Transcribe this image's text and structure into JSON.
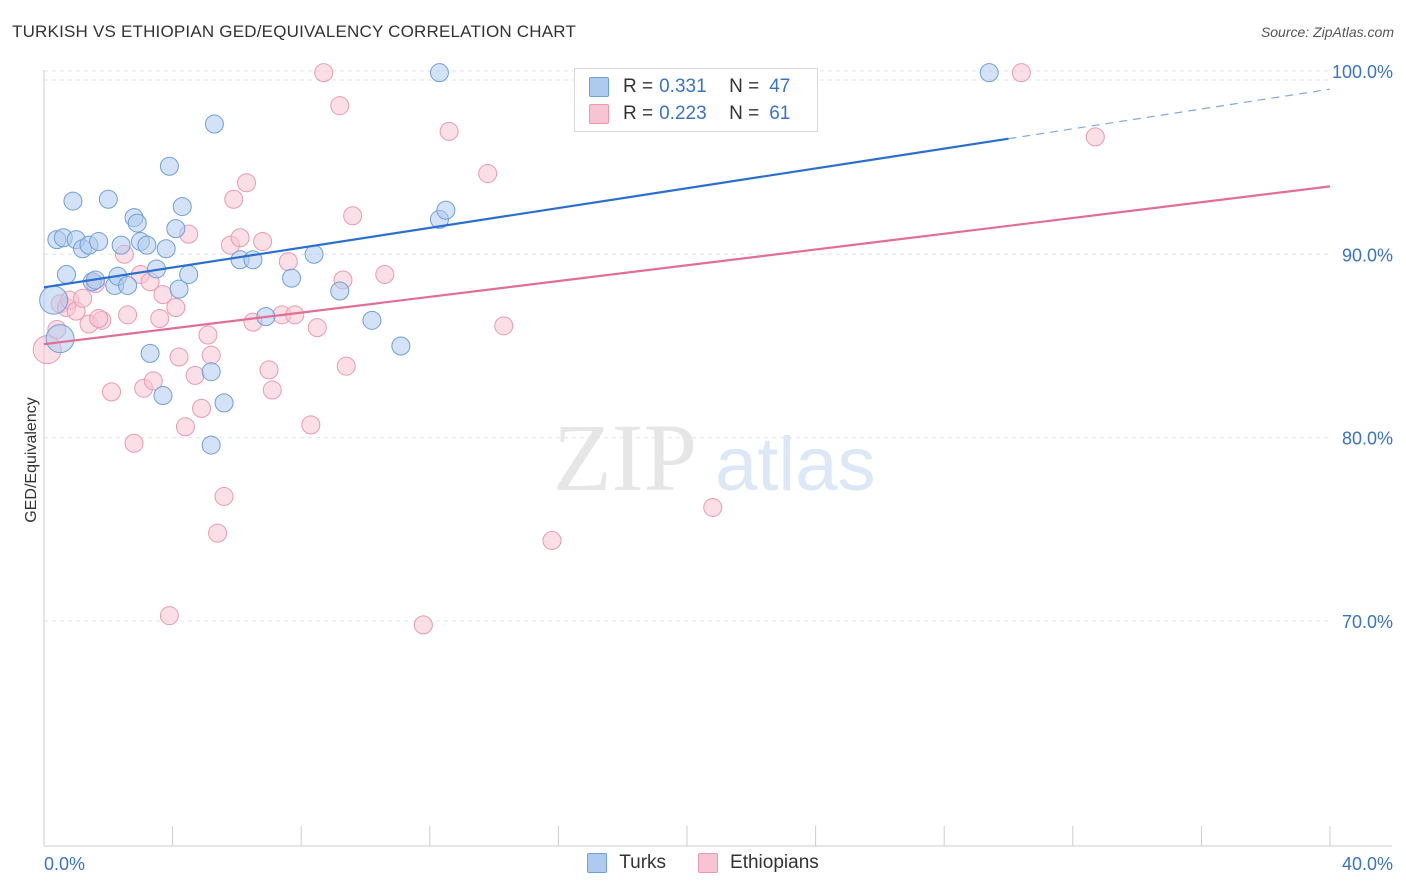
{
  "header": {
    "title": "TURKISH VS ETHIOPIAN GED/EQUIVALENCY CORRELATION CHART",
    "source": "Source: ZipAtlas.com"
  },
  "watermark": {
    "zip": "ZIP",
    "atlas": "atlas"
  },
  "legend": {
    "rows": [
      {
        "r_label": "R =",
        "r_value": "0.331",
        "n_label": "N =",
        "n_value": "47"
      },
      {
        "r_label": "R =",
        "r_value": "0.223",
        "n_label": "N =",
        "n_value": "61"
      }
    ]
  },
  "bottom_legend": {
    "series1": "Turks",
    "series2": "Ethiopians"
  },
  "colors": {
    "turks_fill": "#aecbef",
    "turks_stroke": "#6f9fd8",
    "turks_line": "#2a6fcd",
    "eth_fill": "#f7c4d3",
    "eth_stroke": "#e99ab2",
    "eth_line": "#e06f96",
    "tick_text": "#3a73c5",
    "grid": "#e3e3e3"
  },
  "chart_data": {
    "type": "scatter",
    "title": "TURKISH VS ETHIOPIAN GED/EQUIVALENCY CORRELATION CHART",
    "xlabel": "",
    "ylabel": "GED/Equivalency",
    "xlim": [
      0,
      40
    ],
    "ylim": [
      60,
      100
    ],
    "x_ticks": [
      "0.0%",
      "40.0%"
    ],
    "y_ticks": [
      {
        "value": 70,
        "label": "70.0%"
      },
      {
        "value": 80,
        "label": "80.0%"
      },
      {
        "value": 90,
        "label": "90.0%"
      },
      {
        "value": 100,
        "label": "100.0%"
      }
    ],
    "grid": true,
    "legend_position": "top-center",
    "series": [
      {
        "name": "Turks",
        "r": 0.331,
        "n": 47,
        "trend": {
          "x": [
            0,
            30,
            40
          ],
          "y": [
            88.2,
            96.3,
            99.0
          ],
          "solid_until": 30
        },
        "points": [
          [
            0.3,
            87.5,
            14
          ],
          [
            0.5,
            85.4,
            14
          ],
          [
            0.4,
            90.8,
            9
          ],
          [
            0.6,
            90.9,
            9
          ],
          [
            0.7,
            88.9,
            9
          ],
          [
            0.9,
            92.9,
            9
          ],
          [
            1.0,
            90.8,
            9
          ],
          [
            1.2,
            90.3,
            9
          ],
          [
            1.4,
            90.5,
            9
          ],
          [
            1.5,
            88.5,
            9
          ],
          [
            1.6,
            88.6,
            9
          ],
          [
            1.7,
            90.7,
            9
          ],
          [
            2.0,
            93.0,
            9
          ],
          [
            2.2,
            88.3,
            9
          ],
          [
            2.3,
            88.8,
            9
          ],
          [
            2.4,
            90.5,
            9
          ],
          [
            2.6,
            88.3,
            9
          ],
          [
            2.8,
            92.0,
            9
          ],
          [
            2.9,
            91.7,
            9
          ],
          [
            3.0,
            90.7,
            9
          ],
          [
            3.2,
            90.5,
            9
          ],
          [
            3.3,
            84.6,
            9
          ],
          [
            3.5,
            89.2,
            9
          ],
          [
            3.7,
            82.3,
            9
          ],
          [
            3.8,
            90.3,
            9
          ],
          [
            3.9,
            94.8,
            9
          ],
          [
            4.1,
            91.4,
            9
          ],
          [
            4.2,
            88.1,
            9
          ],
          [
            4.3,
            92.6,
            9
          ],
          [
            4.5,
            88.9,
            9
          ],
          [
            5.2,
            83.6,
            9
          ],
          [
            5.3,
            97.1,
            9
          ],
          [
            5.2,
            79.6,
            9
          ],
          [
            5.6,
            81.9,
            9
          ],
          [
            6.1,
            89.7,
            9
          ],
          [
            6.5,
            89.7,
            9
          ],
          [
            6.9,
            86.6,
            9
          ],
          [
            7.7,
            88.7,
            9
          ],
          [
            8.4,
            90.0,
            9
          ],
          [
            9.2,
            88.0,
            9
          ],
          [
            10.2,
            86.4,
            9
          ],
          [
            11.1,
            85.0,
            9
          ],
          [
            12.3,
            91.9,
            9
          ],
          [
            12.5,
            92.4,
            9
          ],
          [
            12.3,
            99.9,
            9
          ],
          [
            29.4,
            99.9,
            9
          ]
        ]
      },
      {
        "name": "Ethiopians",
        "r": 0.223,
        "n": 61,
        "trend": {
          "x": [
            0,
            40
          ],
          "y": [
            85.1,
            93.7
          ]
        },
        "points": [
          [
            0.1,
            84.8,
            14
          ],
          [
            0.4,
            85.9,
            9
          ],
          [
            0.5,
            87.3,
            9
          ],
          [
            0.7,
            87.1,
            9
          ],
          [
            0.8,
            87.5,
            9
          ],
          [
            1.0,
            86.9,
            9
          ],
          [
            1.2,
            87.6,
            9
          ],
          [
            1.4,
            86.2,
            9
          ],
          [
            1.6,
            88.4,
            9
          ],
          [
            1.8,
            86.4,
            9
          ],
          [
            1.7,
            86.5,
            9
          ],
          [
            2.1,
            82.5,
            9
          ],
          [
            2.5,
            90.0,
            9
          ],
          [
            2.6,
            86.7,
            9
          ],
          [
            2.8,
            79.7,
            9
          ],
          [
            3.0,
            88.9,
            9
          ],
          [
            3.1,
            82.7,
            9
          ],
          [
            3.3,
            88.5,
            9
          ],
          [
            3.4,
            83.1,
            9
          ],
          [
            3.6,
            86.5,
            9
          ],
          [
            3.7,
            87.8,
            9
          ],
          [
            3.9,
            70.3,
            9
          ],
          [
            4.1,
            87.1,
            9
          ],
          [
            4.2,
            84.4,
            9
          ],
          [
            4.4,
            80.6,
            9
          ],
          [
            4.5,
            91.1,
            9
          ],
          [
            4.7,
            83.4,
            9
          ],
          [
            4.9,
            81.6,
            9
          ],
          [
            5.1,
            85.6,
            9
          ],
          [
            5.2,
            84.5,
            9
          ],
          [
            5.4,
            74.8,
            9
          ],
          [
            5.6,
            76.8,
            9
          ],
          [
            5.8,
            90.5,
            9
          ],
          [
            5.9,
            93.0,
            9
          ],
          [
            6.1,
            90.9,
            9
          ],
          [
            6.3,
            93.9,
            9
          ],
          [
            6.5,
            86.3,
            9
          ],
          [
            6.8,
            90.7,
            9
          ],
          [
            7.0,
            83.7,
            9
          ],
          [
            7.1,
            82.6,
            9
          ],
          [
            7.4,
            86.7,
            9
          ],
          [
            7.6,
            89.6,
            9
          ],
          [
            7.8,
            86.7,
            9
          ],
          [
            8.3,
            80.7,
            9
          ],
          [
            8.5,
            86.0,
            9
          ],
          [
            8.7,
            99.9,
            9
          ],
          [
            9.2,
            98.1,
            9
          ],
          [
            9.3,
            88.6,
            9
          ],
          [
            9.6,
            92.1,
            9
          ],
          [
            9.4,
            83.9,
            9
          ],
          [
            10.6,
            88.9,
            9
          ],
          [
            11.8,
            69.8,
            9
          ],
          [
            12.6,
            96.7,
            9
          ],
          [
            13.8,
            94.4,
            9
          ],
          [
            14.3,
            86.1,
            9
          ],
          [
            15.8,
            74.4,
            9
          ],
          [
            20.8,
            76.2,
            9
          ],
          [
            30.4,
            99.9,
            9
          ],
          [
            32.7,
            96.4,
            9
          ]
        ]
      }
    ]
  }
}
